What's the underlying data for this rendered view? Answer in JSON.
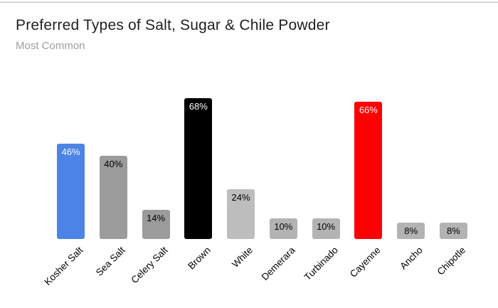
{
  "chart_data": {
    "type": "bar",
    "title": "Preferred Types of Salt, Sugar & Chile Powder",
    "subtitle": "Most Common",
    "categories": [
      "Kosher Salt",
      "Sea Salt",
      "Celery Salt",
      "Brown",
      "White",
      "Demerara",
      "Turbinado",
      "Cayenne",
      "Ancho",
      "Chipotle"
    ],
    "values": [
      46,
      40,
      14,
      68,
      24,
      10,
      10,
      66,
      8,
      8
    ],
    "value_labels": [
      "46%",
      "40%",
      "14%",
      "68%",
      "24%",
      "10%",
      "10%",
      "66%",
      "8%",
      "8%"
    ],
    "unit": "%",
    "ylim": [
      0,
      74
    ],
    "grid": false,
    "legend_position": "none",
    "x_label_rotation_deg": -45,
    "bar_colors": [
      "#4c83e6",
      "#9b9b9b",
      "#9b9b9b",
      "#000000",
      "#bdbdbd",
      "#b3b3b3",
      "#b3b3b3",
      "#ff0000",
      "#b3b3b3",
      "#b3b3b3"
    ],
    "value_label_colors": [
      "#ffffff",
      "#000000",
      "#000000",
      "#ffffff",
      "#000000",
      "#000000",
      "#000000",
      "#ffffff",
      "#000000",
      "#000000"
    ],
    "highlight_colors": {
      "salt": "#4c83e6",
      "sugar": "#000000",
      "chile_powder": "#ff0000",
      "default_gray": "#9b9b9b"
    },
    "title_color": "#1f1f1f",
    "subtitle_color": "#9e9e9e",
    "background_color": "#ffffff"
  }
}
